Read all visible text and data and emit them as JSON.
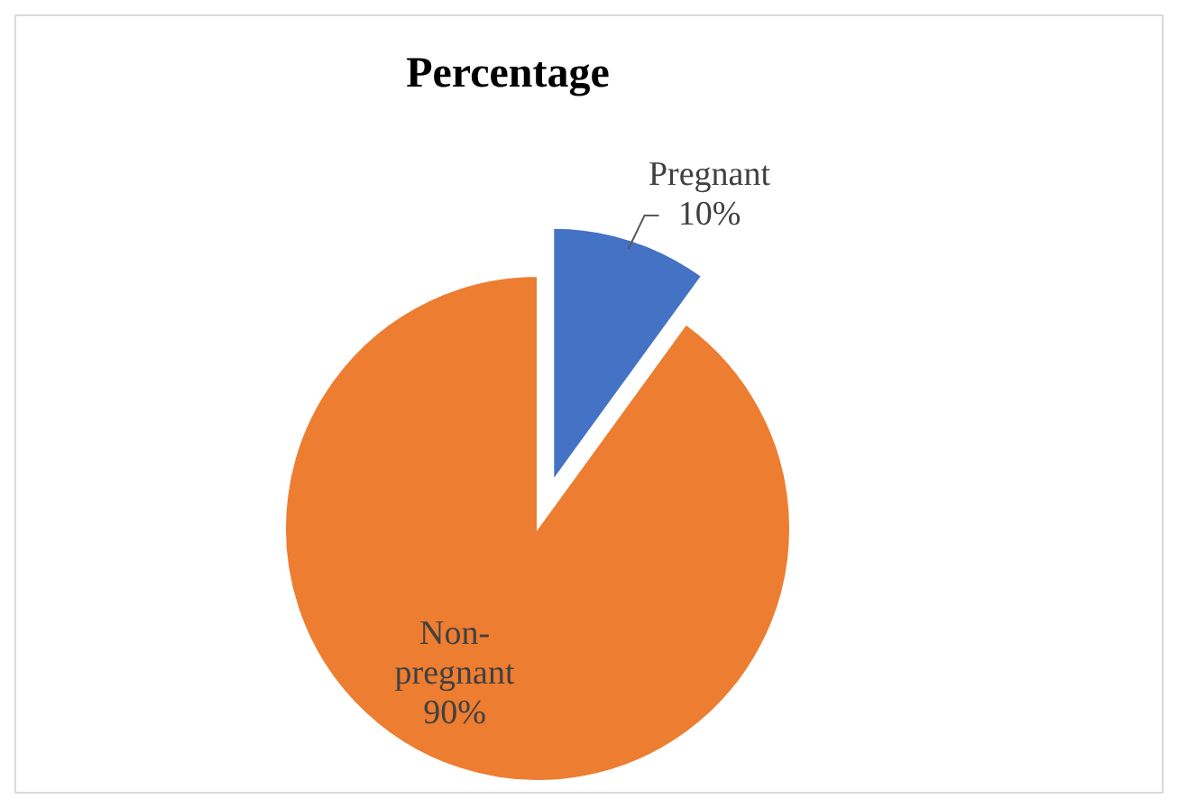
{
  "chart_data": {
    "type": "pie",
    "title": "Percentage",
    "categories": [
      "Pregnant",
      "Non-pregnant"
    ],
    "values": [
      10,
      90
    ],
    "colors": [
      "#4472c4",
      "#ed7d31"
    ],
    "value_labels": [
      "10%",
      "90%"
    ]
  }
}
